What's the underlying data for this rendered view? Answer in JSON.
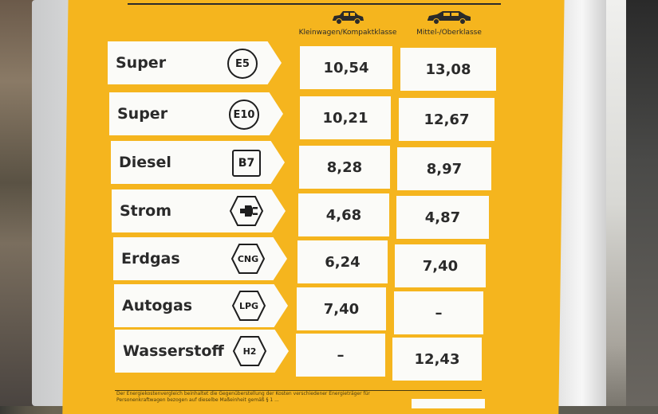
{
  "headers": {
    "small_car": "Kleinwagen/Kompaktklasse",
    "mid_car": "Mittel-/Oberklasse"
  },
  "rows": [
    {
      "name": "Super",
      "badge": "E5",
      "badge_shape": "circle",
      "small": "10,54",
      "mid": "13,08"
    },
    {
      "name": "Super E10",
      "badge": "E10",
      "badge_shape": "circle",
      "small": "10,21",
      "mid": "12,67"
    },
    {
      "name": "Diesel",
      "badge": "B7",
      "badge_shape": "square",
      "small": "8,28",
      "mid": "8,97"
    },
    {
      "name": "Strom",
      "badge": "",
      "badge_shape": "hex-plug",
      "small": "4,68",
      "mid": "4,87"
    },
    {
      "name": "Erdgas H",
      "badge": "CNG",
      "badge_shape": "hex",
      "small": "6,24",
      "mid": "7,40"
    },
    {
      "name": "Autogas",
      "badge": "LPG",
      "badge_shape": "hex",
      "small": "7,40",
      "mid": "–"
    },
    {
      "name": "Wasserstoff",
      "badge": "H2",
      "badge_shape": "hex",
      "small": "–",
      "mid": "12,43"
    }
  ],
  "footer": {
    "text": "Der Energiekostenvergleich beinhaltet die Gegenüberstellung der Kosten verschiedener Energieträger für Personenkraftwagen bezogen auf dieselbe Maßeinheit gemäß § 1 ..."
  },
  "colors": {
    "poster": "#f5b51e",
    "panel": "#fbfbf8",
    "ink": "#2a2a2a"
  }
}
